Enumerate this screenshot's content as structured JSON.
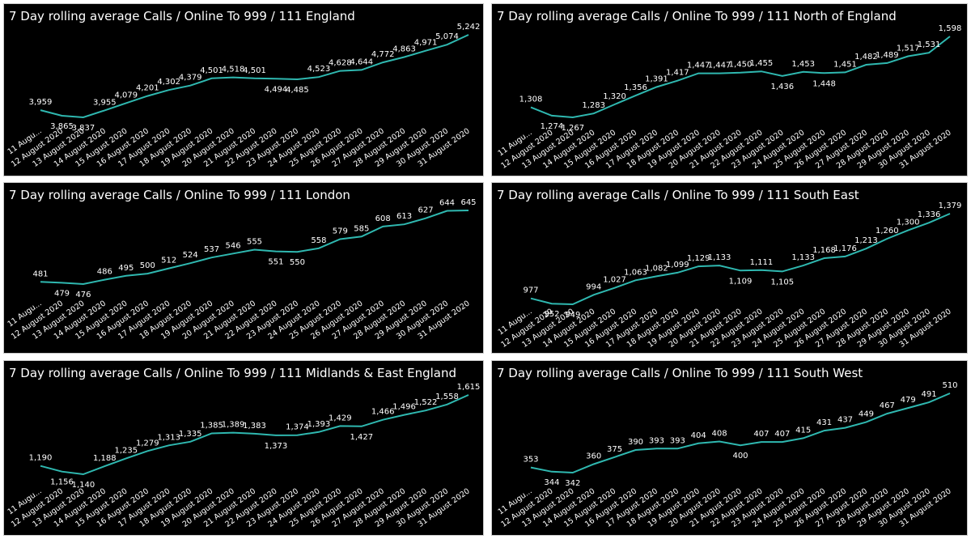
{
  "line_color": "#2fb8b0",
  "background": "#000000",
  "chart_data": [
    {
      "type": "line",
      "title": "7 Day rolling average Calls / Online To 999 / 111 England",
      "x": [
        "11 Augu...",
        "12 August 2020",
        "13 August 2020",
        "14 August 2020",
        "15 August 2020",
        "16 August 2020",
        "17 August 2020",
        "18 August 2020",
        "19 August 2020",
        "20 August 2020",
        "21 August 2020",
        "22 August 2020",
        "23 August 2020",
        "24 August 2020",
        "25 August 2020",
        "26 August 2020",
        "27 August 2020",
        "28 August 2020",
        "29 August 2020",
        "30 August 2020",
        "31 August 2020"
      ],
      "values": [
        3959,
        3865,
        3837,
        3955,
        4079,
        4201,
        4302,
        4379,
        4501,
        4518,
        4501,
        4494,
        4485,
        4523,
        4628,
        4644,
        4772,
        4863,
        4971,
        5074,
        5242
      ],
      "labels": [
        "3,959",
        "3,865",
        "3,837",
        "3,955",
        "4,079",
        "4,201",
        "4,302",
        "4,379",
        "4,501",
        "4,518",
        "4,501",
        "4,494",
        "4,485",
        "4,523",
        "4,628",
        "4,644",
        "4,772",
        "4,863",
        "4,971",
        "5,074",
        "5,242"
      ]
    },
    {
      "type": "line",
      "title": "7 Day rolling average Calls / Online To 999 / 111 North of England",
      "x": [
        "11 Augu...",
        "12 August 2020",
        "13 August 2020",
        "14 August 2020",
        "15 August 2020",
        "16 August 2020",
        "17 August 2020",
        "18 August 2020",
        "19 August 2020",
        "20 August 2020",
        "21 August 2020",
        "22 August 2020",
        "23 August 2020",
        "24 August 2020",
        "25 August 2020",
        "26 August 2020",
        "27 August 2020",
        "28 August 2020",
        "29 August 2020",
        "30 August 2020",
        "31 August 2020"
      ],
      "values": [
        1308,
        1274,
        1267,
        1283,
        1320,
        1356,
        1391,
        1417,
        1447,
        1447,
        1450,
        1455,
        1436,
        1453,
        1448,
        1451,
        1482,
        1489,
        1517,
        1531,
        1598
      ],
      "labels": [
        "1,308",
        "1,274",
        "1,267",
        "1,283",
        "1,320",
        "1,356",
        "1,391",
        "1,417",
        "1,447",
        "1,447",
        "1,450",
        "1,455",
        "1,436",
        "1,453",
        "1,448",
        "1,451",
        "1,482",
        "1,489",
        "1,517",
        "1,531",
        "1,598"
      ]
    },
    {
      "type": "line",
      "title": "7 Day rolling average Calls / Online To 999 / 111 London",
      "x": [
        "11 Augu...",
        "12 August 2020",
        "13 August 2020",
        "14 August 2020",
        "15 August 2020",
        "16 August 2020",
        "17 August 2020",
        "18 August 2020",
        "19 August 2020",
        "20 August 2020",
        "21 August 2020",
        "22 August 2020",
        "23 August 2020",
        "24 August 2020",
        "25 August 2020",
        "26 August 2020",
        "27 August 2020",
        "28 August 2020",
        "29 August 2020",
        "30 August 2020",
        "31 August 2020"
      ],
      "values": [
        481,
        479,
        476,
        486,
        495,
        500,
        512,
        524,
        537,
        546,
        555,
        551,
        550,
        558,
        579,
        585,
        608,
        613,
        627,
        644,
        645
      ],
      "labels": [
        "481",
        "479",
        "476",
        "486",
        "495",
        "500",
        "512",
        "524",
        "537",
        "546",
        "555",
        "551",
        "550",
        "558",
        "579",
        "585",
        "608",
        "613",
        "627",
        "644",
        "645"
      ]
    },
    {
      "type": "line",
      "title": "7 Day rolling average Calls / Online To 999 / 111 South East",
      "x": [
        "11 Augu...",
        "12 August 2020",
        "13 August 2020",
        "14 August 2020",
        "15 August 2020",
        "16 August 2020",
        "17 August 2020",
        "18 August 2020",
        "19 August 2020",
        "20 August 2020",
        "21 August 2020",
        "22 August 2020",
        "23 August 2020",
        "24 August 2020",
        "25 August 2020",
        "26 August 2020",
        "27 August 2020",
        "28 August 2020",
        "29 August 2020",
        "30 August 2020",
        "31 August 2020"
      ],
      "values": [
        977,
        952,
        949,
        994,
        1027,
        1063,
        1082,
        1099,
        1129,
        1133,
        1109,
        1111,
        1105,
        1133,
        1168,
        1176,
        1213,
        1260,
        1300,
        1336,
        1379
      ],
      "labels": [
        "977",
        "952",
        "949",
        "994",
        "1,027",
        "1,063",
        "1,082",
        "1,099",
        "1,129",
        "1,133",
        "1,109",
        "1,111",
        "1,105",
        "1,133",
        "1,168",
        "1,176",
        "1,213",
        "1,260",
        "1,300",
        "1,336",
        "1,379"
      ]
    },
    {
      "type": "line",
      "title": "7 Day rolling average Calls / Online To 999 / 111 Midlands & East England",
      "x": [
        "11 Augu...",
        "12 August 2020",
        "13 August 2020",
        "14 August 2020",
        "15 August 2020",
        "16 August 2020",
        "17 August 2020",
        "18 August 2020",
        "19 August 2020",
        "20 August 2020",
        "21 August 2020",
        "22 August 2020",
        "23 August 2020",
        "24 August 2020",
        "25 August 2020",
        "26 August 2020",
        "27 August 2020",
        "28 August 2020",
        "29 August 2020",
        "30 August 2020",
        "31 August 2020"
      ],
      "values": [
        1190,
        1156,
        1140,
        1188,
        1235,
        1279,
        1313,
        1335,
        1385,
        1389,
        1383,
        1373,
        1374,
        1393,
        1429,
        1427,
        1466,
        1496,
        1522,
        1558,
        1615
      ],
      "labels": [
        "1,190",
        "1,156",
        "1,140",
        "1,188",
        "1,235",
        "1,279",
        "1,313",
        "1,335",
        "1,385",
        "1,389",
        "1,383",
        "1,373",
        "1,374",
        "1,393",
        "1,429",
        "1,427",
        "1,466",
        "1,496",
        "1,522",
        "1,558",
        "1,615"
      ]
    },
    {
      "type": "line",
      "title": "7 Day rolling average Calls / Online To 999 / 111 South West",
      "x": [
        "11 Augu...",
        "12 August 2020",
        "13 August 2020",
        "14 August 2020",
        "15 August 2020",
        "16 August 2020",
        "17 August 2020",
        "18 August 2020",
        "19 August 2020",
        "20 August 2020",
        "21 August 2020",
        "22 August 2020",
        "23 August 2020",
        "24 August 2020",
        "25 August 2020",
        "26 August 2020",
        "27 August 2020",
        "28 August 2020",
        "29 August 2020",
        "30 August 2020",
        "31 August 2020"
      ],
      "values": [
        353,
        344,
        342,
        360,
        375,
        390,
        393,
        393,
        404,
        408,
        400,
        407,
        407,
        415,
        431,
        437,
        449,
        467,
        479,
        491,
        510
      ],
      "labels": [
        "353",
        "344",
        "342",
        "360",
        "375",
        "390",
        "393",
        "393",
        "404",
        "408",
        "400",
        "407",
        "407",
        "415",
        "431",
        "437",
        "449",
        "467",
        "479",
        "491",
        "510"
      ]
    }
  ]
}
